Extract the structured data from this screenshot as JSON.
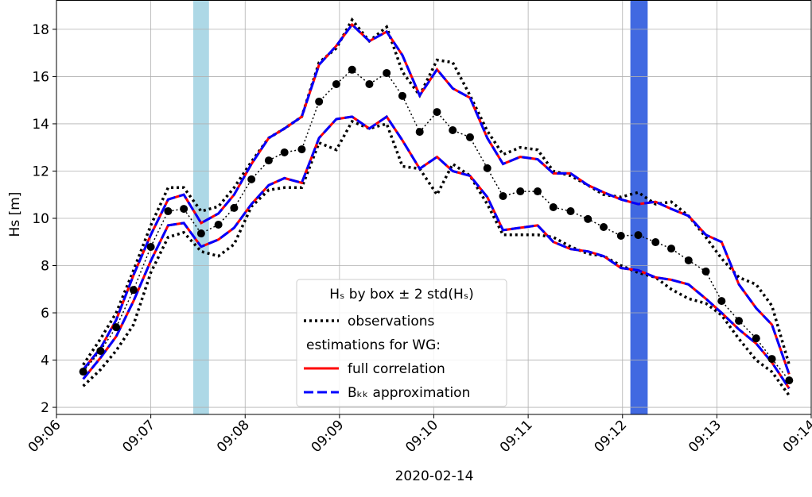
{
  "chart_data": {
    "type": "line",
    "x_label": "2020-02-14",
    "y_label": "Hs [m]",
    "x": [
      "09:06:17",
      "09:06:28",
      "09:06:38",
      "09:06:49",
      "09:07:00",
      "09:07:11",
      "09:07:21",
      "09:07:32",
      "09:07:43",
      "09:07:53",
      "09:08:04",
      "09:08:15",
      "09:08:25",
      "09:08:36",
      "09:08:47",
      "09:08:58",
      "09:09:08",
      "09:09:19",
      "09:09:30",
      "09:09:40",
      "09:09:51",
      "09:10:02",
      "09:10:12",
      "09:10:23",
      "09:10:34",
      "09:10:44",
      "09:10:55",
      "09:11:06",
      "09:11:16",
      "09:11:27",
      "09:11:38",
      "09:11:48",
      "09:11:59",
      "09:12:10",
      "09:12:21",
      "09:12:31",
      "09:12:42",
      "09:12:53",
      "09:13:03",
      "09:13:14",
      "09:13:25",
      "09:13:35",
      "09:13:46"
    ],
    "xlim": [
      "09:06:00",
      "09:14:00"
    ],
    "xticks": [
      {
        "value": "09:06:00",
        "label": "09:06"
      },
      {
        "value": "09:07:00",
        "label": "09:07"
      },
      {
        "value": "09:08:00",
        "label": "09:08"
      },
      {
        "value": "09:09:00",
        "label": "09:09"
      },
      {
        "value": "09:10:00",
        "label": "09:10"
      },
      {
        "value": "09:11:00",
        "label": "09:11"
      },
      {
        "value": "09:12:00",
        "label": "09:12"
      },
      {
        "value": "09:13:00",
        "label": "09:13"
      },
      {
        "value": "09:14:00",
        "label": "09:14"
      }
    ],
    "ylim": [
      1.7,
      19.24
    ],
    "yticks": [
      2,
      4,
      6,
      8,
      10,
      12,
      14,
      16,
      18
    ],
    "grid": true,
    "spans": [
      {
        "x": [
          "09:07:27",
          "09:07:37"
        ],
        "color": "#add8e6"
      },
      {
        "x": [
          "09:12:05",
          "09:12:16"
        ],
        "color": "#4169e1"
      }
    ],
    "legend_title": "Hₛ by box ± 2 std(Hₛ)",
    "legend_heading": "estimations for WG:",
    "series": [
      {
        "name": "observations",
        "color": "#000000",
        "style": "dotted",
        "values": [
          3.51,
          4.39,
          5.39,
          6.97,
          8.79,
          10.3,
          10.4,
          9.36,
          9.73,
          10.44,
          11.65,
          12.45,
          12.79,
          12.92,
          14.94,
          15.68,
          16.29,
          15.68,
          16.15,
          15.18,
          13.66,
          14.5,
          13.73,
          13.43,
          12.12,
          10.94,
          11.14,
          11.14,
          10.47,
          10.3,
          9.97,
          9.63,
          9.26,
          9.29,
          8.99,
          8.72,
          8.22,
          7.75,
          6.5,
          5.66,
          4.92,
          4.05,
          3.14
        ],
        "upper": [
          3.8,
          4.9,
          6.0,
          7.8,
          9.7,
          11.3,
          11.3,
          10.3,
          10.5,
          11.3,
          12.4,
          13.4,
          13.8,
          14.3,
          16.6,
          17.2,
          18.4,
          17.5,
          18.1,
          16.2,
          15.2,
          16.7,
          16.6,
          15.2,
          13.7,
          12.7,
          13.0,
          12.9,
          12.0,
          11.8,
          11.4,
          11.0,
          10.9,
          11.1,
          10.6,
          10.7,
          10.1,
          9.2,
          8.3,
          7.5,
          7.2,
          6.3,
          3.8
        ],
        "lower": [
          2.9,
          3.6,
          4.4,
          5.5,
          7.7,
          9.2,
          9.4,
          8.6,
          8.4,
          8.9,
          10.5,
          11.2,
          11.3,
          11.3,
          13.2,
          12.9,
          14.1,
          13.8,
          14.0,
          12.2,
          12.1,
          11.0,
          12.3,
          11.8,
          10.6,
          9.3,
          9.3,
          9.3,
          9.2,
          8.8,
          8.5,
          8.4,
          8.0,
          7.7,
          7.5,
          7.0,
          6.6,
          6.4,
          5.9,
          4.9,
          4.0,
          3.5,
          2.5
        ]
      },
      {
        "name": "full correlation",
        "color": "#ff0000",
        "style": "solid",
        "upper": [
          3.6,
          4.5,
          5.7,
          7.6,
          9.3,
          10.8,
          11.0,
          9.8,
          10.2,
          11.0,
          12.3,
          13.4,
          13.8,
          14.3,
          16.5,
          17.3,
          18.2,
          17.5,
          17.9,
          16.9,
          15.2,
          16.3,
          15.5,
          15.1,
          13.4,
          12.3,
          12.6,
          12.5,
          11.9,
          11.9,
          11.4,
          11.1,
          10.8,
          10.6,
          10.7,
          10.4,
          10.1,
          9.3,
          9.0,
          7.2,
          6.2,
          5.5,
          3.4
        ],
        "lower": [
          3.2,
          4.1,
          5.0,
          6.5,
          8.2,
          9.7,
          9.8,
          8.8,
          9.1,
          9.6,
          10.6,
          11.4,
          11.7,
          11.5,
          13.4,
          14.2,
          14.3,
          13.8,
          14.3,
          13.3,
          12.1,
          12.6,
          12.0,
          11.8,
          10.9,
          9.5,
          9.6,
          9.7,
          9.0,
          8.7,
          8.6,
          8.4,
          7.9,
          7.8,
          7.5,
          7.4,
          7.2,
          6.6,
          6.0,
          5.3,
          4.7,
          3.9,
          2.8
        ]
      },
      {
        "name": "Bₖₖ approximation",
        "color": "#0000ff",
        "style": "dashed",
        "upper": [
          3.6,
          4.5,
          5.7,
          7.6,
          9.3,
          10.8,
          11.0,
          9.8,
          10.2,
          11.0,
          12.3,
          13.4,
          13.8,
          14.3,
          16.5,
          17.3,
          18.2,
          17.5,
          17.9,
          16.9,
          15.2,
          16.3,
          15.5,
          15.1,
          13.4,
          12.3,
          12.6,
          12.5,
          11.9,
          11.9,
          11.4,
          11.1,
          10.8,
          10.6,
          10.7,
          10.4,
          10.1,
          9.3,
          9.0,
          7.2,
          6.2,
          5.5,
          3.4
        ],
        "lower": [
          3.2,
          4.1,
          5.0,
          6.5,
          8.2,
          9.7,
          9.8,
          8.8,
          9.1,
          9.6,
          10.6,
          11.4,
          11.7,
          11.5,
          13.4,
          14.2,
          14.3,
          13.8,
          14.3,
          13.3,
          12.1,
          12.6,
          12.0,
          11.8,
          10.9,
          9.5,
          9.6,
          9.7,
          9.0,
          8.7,
          8.6,
          8.4,
          7.9,
          7.8,
          7.5,
          7.4,
          7.2,
          6.6,
          6.0,
          5.3,
          4.7,
          3.9,
          2.8
        ]
      }
    ]
  }
}
